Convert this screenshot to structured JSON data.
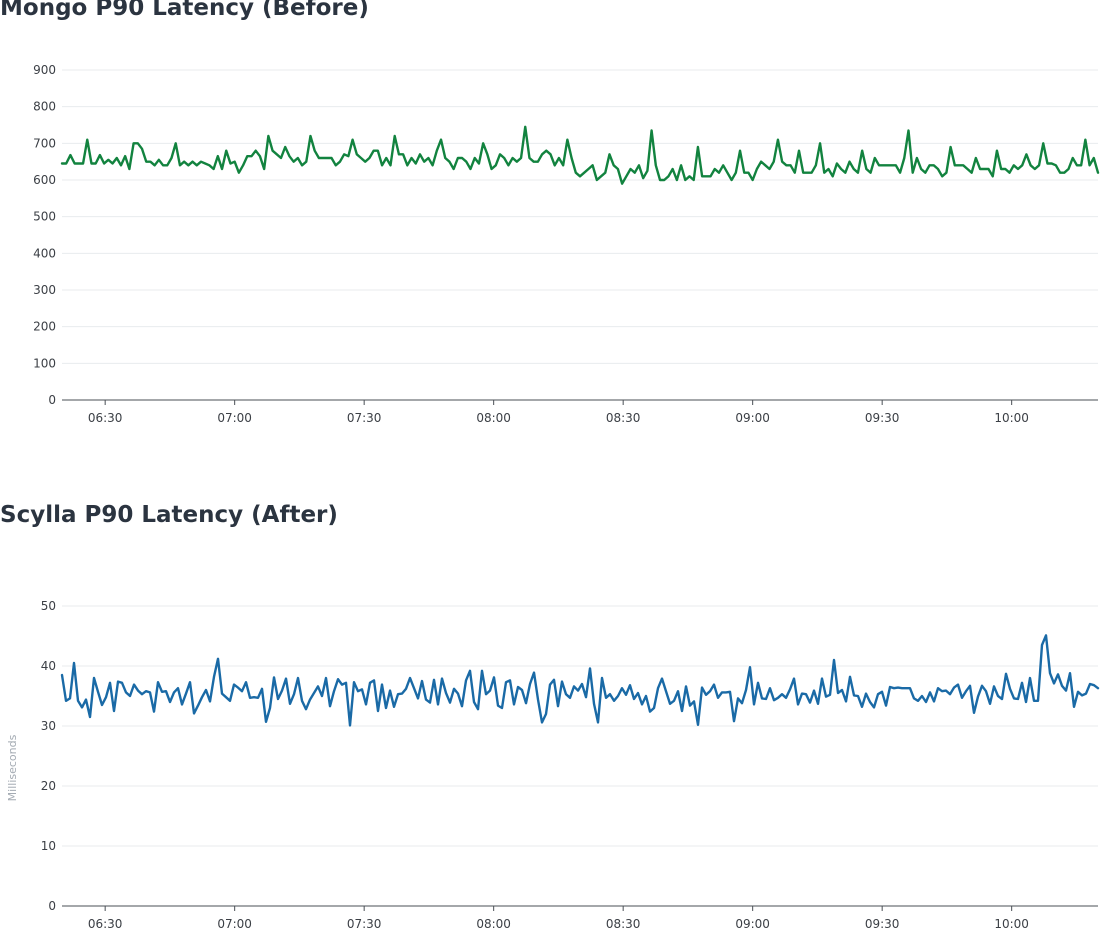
{
  "chart_data": [
    {
      "type": "line",
      "title": "Mongo P90 Latency (Before)",
      "xlabel": "",
      "ylabel": "",
      "x_start": "06:20",
      "x_end": "10:20",
      "xticks": [
        "06:30",
        "07:00",
        "07:30",
        "08:00",
        "08:30",
        "09:00",
        "09:30",
        "10:00"
      ],
      "ylim": [
        0,
        900
      ],
      "yticks": [
        0,
        100,
        200,
        300,
        400,
        500,
        600,
        700,
        800,
        900
      ],
      "grid": true,
      "legend": "none",
      "series": [
        {
          "color": "#12833f",
          "values": [
            645,
            645,
            668,
            645,
            645,
            645,
            710,
            645,
            645,
            668,
            645,
            655,
            645,
            660,
            640,
            665,
            630,
            700,
            700,
            685,
            650,
            650,
            640,
            655,
            640,
            640,
            660,
            700,
            640,
            650,
            640,
            650,
            640,
            650,
            645,
            640,
            630,
            665,
            630,
            680,
            645,
            650,
            620,
            640,
            665,
            665,
            680,
            665,
            630,
            720,
            680,
            670,
            660,
            690,
            665,
            650,
            660,
            640,
            650,
            720,
            680,
            660,
            660,
            660,
            660,
            640,
            650,
            670,
            665,
            710,
            670,
            660,
            650,
            660,
            680,
            680,
            640,
            660,
            640,
            720,
            670,
            670,
            640,
            660,
            645,
            670,
            650,
            660,
            640,
            680,
            710,
            660,
            650,
            630,
            660,
            660,
            650,
            630,
            660,
            645,
            700,
            670,
            630,
            640,
            670,
            660,
            640,
            660,
            650,
            660,
            745,
            660,
            650,
            650,
            670,
            680,
            670,
            640,
            660,
            640,
            710,
            660,
            620,
            610,
            620,
            630,
            640,
            600,
            610,
            620,
            670,
            640,
            630,
            590,
            610,
            630,
            620,
            640,
            605,
            625,
            735,
            640,
            600,
            600,
            610,
            630,
            600,
            640,
            600,
            610,
            600,
            690,
            610,
            610,
            610,
            630,
            620,
            640,
            620,
            600,
            620,
            680,
            620,
            620,
            600,
            630,
            650,
            640,
            630,
            650,
            710,
            650,
            640,
            640,
            620,
            680,
            620,
            620,
            620,
            640,
            700,
            620,
            630,
            610,
            645,
            630,
            620,
            650,
            630,
            620,
            680,
            630,
            620,
            660,
            640,
            640,
            640,
            640,
            640,
            620,
            660,
            735,
            620,
            660,
            630,
            620,
            640,
            640,
            630,
            610,
            620,
            690,
            640,
            640,
            640,
            630,
            620,
            660,
            630,
            630,
            630,
            610,
            680,
            630,
            630,
            620,
            640,
            630,
            640,
            670,
            640,
            630,
            640,
            700,
            645,
            645,
            640,
            620,
            620,
            630,
            660,
            640,
            640,
            710,
            640,
            660,
            620
          ]
        }
      ]
    },
    {
      "type": "line",
      "title": "Scylla P90 Latency (After)",
      "xlabel": "",
      "ylabel": "Milliseconds",
      "x_start": "06:20",
      "x_end": "10:20",
      "xticks": [
        "06:30",
        "07:00",
        "07:30",
        "08:00",
        "08:30",
        "09:00",
        "09:30",
        "10:00"
      ],
      "ylim": [
        0,
        50
      ],
      "yticks": [
        0,
        10,
        20,
        30,
        40,
        50
      ],
      "grid": true,
      "legend": "none",
      "series": [
        {
          "color": "#1a6aa6",
          "values": [
            38.5,
            34.2,
            34.6,
            40.5,
            34.2,
            33.1,
            34.4,
            31.5,
            38.0,
            35.7,
            33.5,
            34.8,
            37.2,
            32.5,
            37.4,
            37.2,
            35.6,
            35.0,
            36.9,
            35.9,
            35.3,
            35.8,
            35.6,
            32.4,
            37.3,
            35.7,
            35.8,
            34.0,
            35.6,
            36.3,
            33.6,
            35.4,
            37.3,
            32.1,
            33.4,
            34.8,
            36.0,
            34.1,
            38.2,
            41.2,
            35.4,
            34.8,
            34.2,
            36.9,
            36.4,
            35.8,
            37.3,
            34.7,
            34.8,
            34.7,
            36.2,
            30.7,
            33.0,
            38.1,
            34.5,
            35.9,
            37.9,
            33.7,
            35.3,
            38.0,
            34.2,
            32.8,
            34.4,
            35.5,
            36.6,
            35.0,
            38.0,
            33.3,
            35.8,
            37.8,
            36.9,
            37.2,
            30.1,
            37.3,
            35.8,
            36.1,
            33.6,
            37.2,
            37.6,
            32.5,
            36.9,
            33.0,
            35.9,
            33.2,
            35.3,
            35.4,
            36.2,
            38.0,
            36.3,
            34.6,
            37.5,
            34.4,
            33.9,
            37.7,
            33.6,
            37.9,
            35.5,
            33.9,
            36.2,
            35.4,
            33.3,
            37.6,
            39.2,
            34.0,
            32.8,
            39.2,
            35.3,
            35.9,
            38.1,
            33.4,
            33.0,
            37.3,
            37.6,
            33.6,
            36.5,
            36.0,
            33.8,
            37.0,
            38.9,
            34.4,
            30.6,
            32.0,
            36.9,
            37.7,
            33.3,
            37.4,
            35.3,
            34.7,
            36.6,
            35.9,
            37.0,
            34.8,
            39.6,
            33.7,
            30.6,
            38.0,
            34.7,
            35.3,
            34.2,
            35.0,
            36.3,
            35.2,
            36.8,
            34.5,
            35.5,
            33.6,
            35.0,
            32.4,
            33.0,
            36.3,
            37.9,
            35.8,
            33.7,
            34.2,
            35.8,
            32.5,
            36.6,
            33.4,
            34.1,
            30.2,
            36.4,
            35.2,
            35.8,
            36.9,
            34.7,
            35.6,
            35.6,
            35.7,
            30.8,
            34.6,
            33.8,
            36.0,
            39.8,
            33.6,
            37.2,
            34.6,
            34.5,
            36.3,
            34.3,
            34.7,
            35.3,
            34.7,
            36.1,
            37.9,
            33.6,
            35.4,
            35.3,
            33.9,
            35.9,
            33.7,
            37.9,
            34.9,
            35.2,
            41.0,
            35.5,
            36.0,
            34.1,
            38.2,
            35.1,
            35.0,
            33.2,
            35.4,
            34.0,
            33.1,
            35.3,
            35.7,
            33.4,
            36.5,
            36.3,
            36.4,
            36.3,
            36.3,
            36.3,
            34.6,
            34.2,
            35.0,
            34.0,
            35.6,
            34.1,
            36.3,
            35.8,
            35.9,
            35.3,
            36.4,
            36.9,
            34.7,
            35.8,
            36.7,
            32.2,
            34.9,
            36.7,
            35.8,
            33.7,
            36.6,
            35.0,
            34.5,
            38.7,
            36.2,
            34.6,
            34.5,
            37.2,
            34.0,
            38.0,
            34.2,
            34.2,
            43.5,
            45.1,
            38.8,
            37.1,
            38.6,
            36.7,
            35.9,
            38.8,
            33.2,
            35.7,
            35.1,
            35.4,
            37.0,
            36.8,
            36.3
          ]
        }
      ]
    }
  ]
}
